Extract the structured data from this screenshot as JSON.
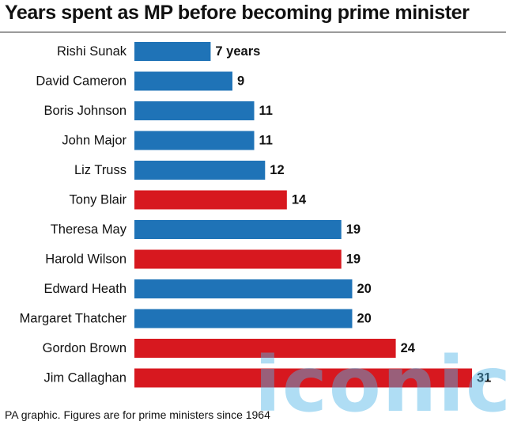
{
  "title": "Years spent as MP before becoming prime minister",
  "footnote": "PA graphic. Figures are for prime ministers since 1964",
  "watermark": "iconic",
  "colors": {
    "conservative": "#1f73b7",
    "labour": "#d7181f"
  },
  "chart_data": {
    "type": "bar",
    "orientation": "horizontal",
    "title": "Years spent as MP before becoming prime minister",
    "unit_label": "years",
    "categories": [
      "Rishi Sunak",
      "David Cameron",
      "Boris Johnson",
      "John Major",
      "Liz Truss",
      "Tony Blair",
      "Theresa May",
      "Harold Wilson",
      "Edward Heath",
      "Margaret Thatcher",
      "Gordon Brown",
      "Jim Callaghan"
    ],
    "values": [
      7,
      9,
      11,
      11,
      12,
      14,
      19,
      19,
      20,
      20,
      24,
      31
    ],
    "value_labels": [
      "7 years",
      "9",
      "11",
      "11",
      "12",
      "14",
      "19",
      "19",
      "20",
      "20",
      "24",
      "31"
    ],
    "bar_colors": [
      "#1f73b7",
      "#1f73b7",
      "#1f73b7",
      "#1f73b7",
      "#1f73b7",
      "#d7181f",
      "#1f73b7",
      "#d7181f",
      "#1f73b7",
      "#1f73b7",
      "#d7181f",
      "#d7181f"
    ],
    "xlim": [
      0,
      31
    ],
    "grid": false,
    "legend": "none"
  }
}
